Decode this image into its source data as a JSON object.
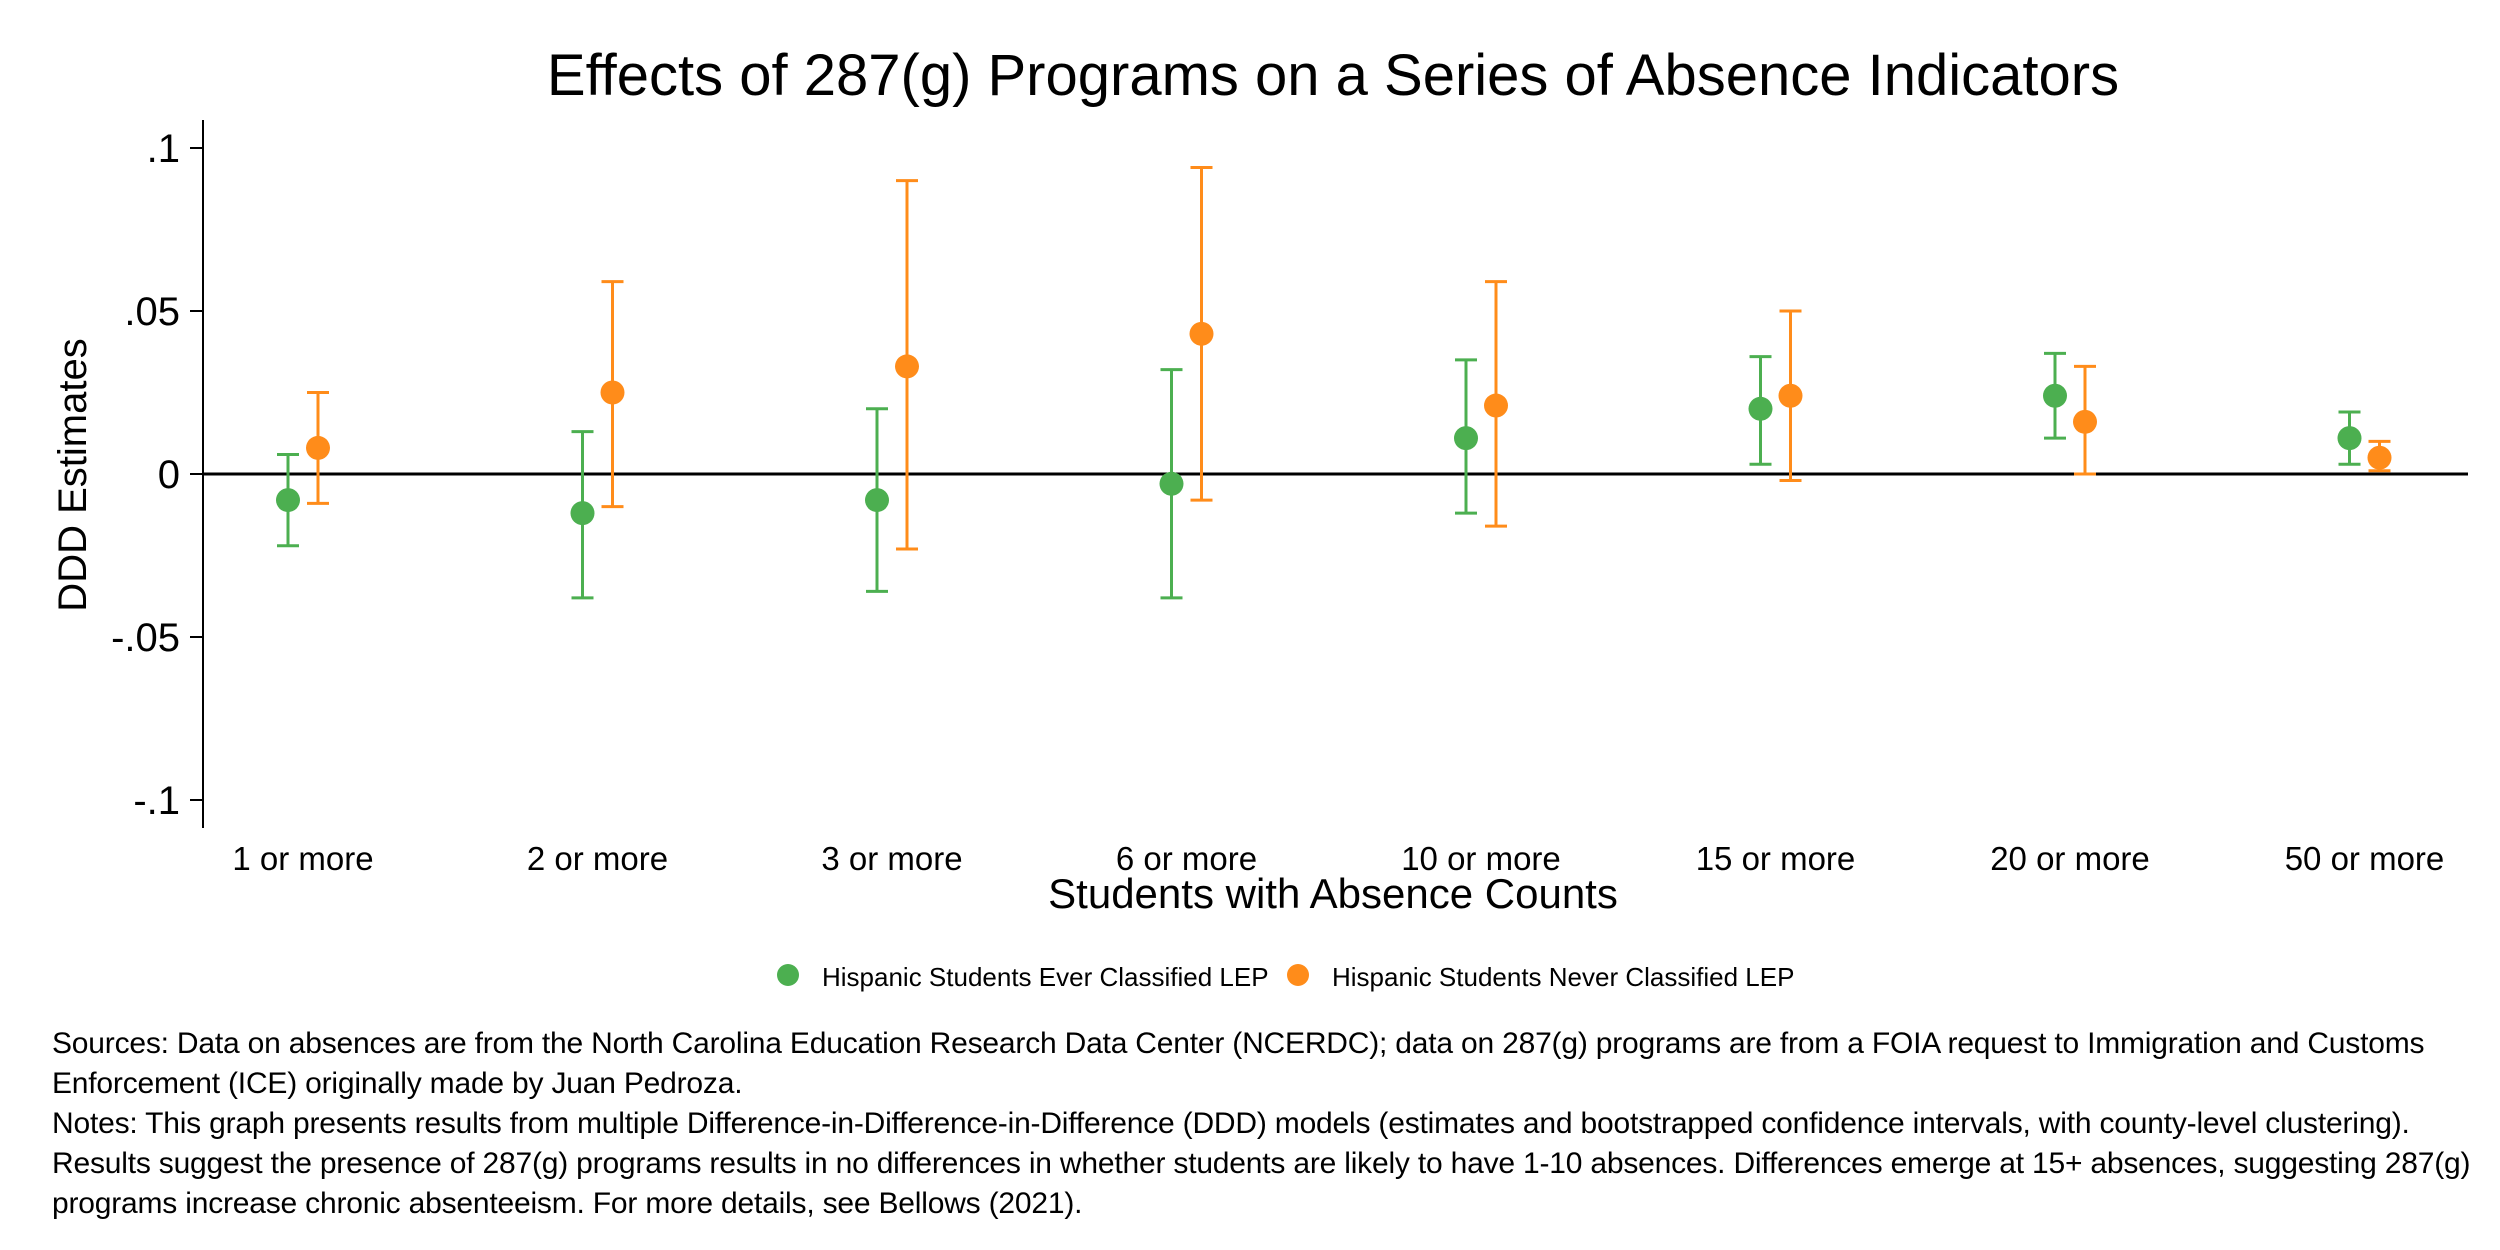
{
  "chart_data": {
    "type": "scatter",
    "title": "Effects of 287(g) Programs on a Series of Absence Indicators",
    "xlabel": "Students with Absence Counts",
    "ylabel": "DDD Estimates",
    "ylim": [
      -0.1,
      0.1
    ],
    "yticks": [
      {
        "value": 0.1,
        "label": ".1"
      },
      {
        "value": 0.05,
        "label": ".05"
      },
      {
        "value": 0,
        "label": "0"
      },
      {
        "value": -0.05,
        "label": "-.05"
      },
      {
        "value": -0.1,
        "label": "-.1"
      }
    ],
    "categories": [
      "1 or more",
      "2 or more",
      "3 or more",
      "6 or more",
      "10 or more",
      "15 or more",
      "20 or more",
      "50 or more"
    ],
    "reference_line": 0,
    "legend_position": "bottom",
    "series": [
      {
        "name": "Hispanic Students Ever Classified LEP",
        "color": "#4caf50",
        "estimates": [
          -0.008,
          -0.012,
          -0.008,
          -0.003,
          0.011,
          0.02,
          0.024,
          0.011
        ],
        "ci_low": [
          -0.022,
          -0.038,
          -0.036,
          -0.038,
          -0.012,
          0.003,
          0.011,
          0.003
        ],
        "ci_high": [
          0.006,
          0.013,
          0.02,
          0.032,
          0.035,
          0.036,
          0.037,
          0.019
        ]
      },
      {
        "name": "Hispanic Students Never Classified LEP",
        "color": "#ff8c1a",
        "estimates": [
          0.008,
          0.025,
          0.033,
          0.043,
          0.021,
          0.024,
          0.016,
          0.005
        ],
        "ci_low": [
          -0.009,
          -0.01,
          -0.023,
          -0.008,
          -0.016,
          -0.002,
          0.0,
          0.001
        ],
        "ci_high": [
          0.025,
          0.059,
          0.09,
          0.094,
          0.059,
          0.05,
          0.033,
          0.01
        ]
      }
    ]
  },
  "footnote": {
    "sources": "Sources: Data on absences are from the North Carolina Education Research Data Center (NCERDC); data on 287(g) programs are from a FOIA request to Immigration and Customs Enforcement (ICE) originally made by Juan Pedroza.",
    "notes": "Notes: This graph presents results from multiple Difference-in-Difference-in-Difference (DDD) models (estimates and bootstrapped confidence intervals, with county-level clustering). Results suggest the presence of 287(g) programs results in no differences in whether students are likely to have 1-10 absences. Differences emerge at 15+ absences, suggesting 287(g) programs increase chronic absenteeism.  For more details, see Bellows (2021)."
  }
}
